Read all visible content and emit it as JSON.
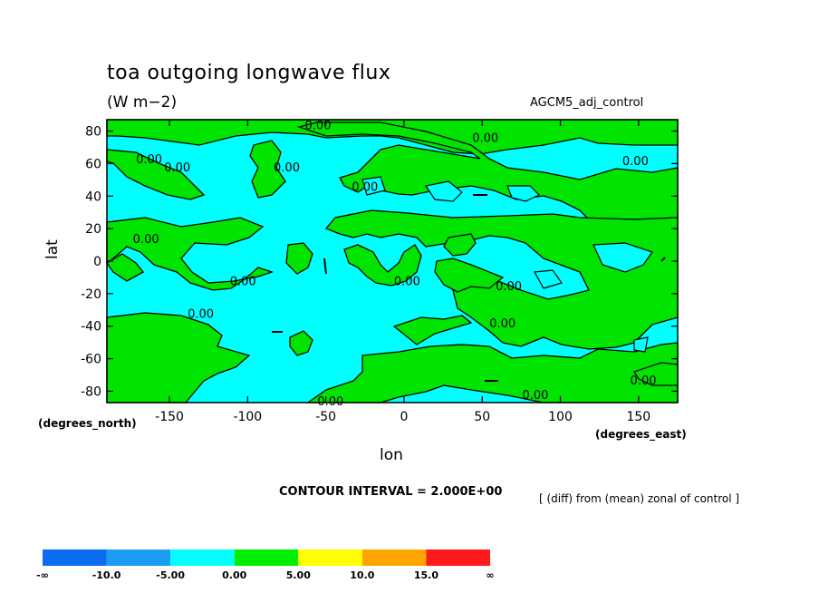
{
  "header": {
    "title": "toa outgoing longwave flux",
    "units": "(W m−2)",
    "dataset": "AGCM5_adj_control"
  },
  "axes": {
    "y_name": "lat",
    "x_name": "lon",
    "y_units": "(degrees_north)",
    "x_units": "(degrees_east)"
  },
  "footer": {
    "contour_interval": "CONTOUR INTERVAL = 2.000E+00",
    "operation": "[ (diff) from (mean) zonal of control ]"
  },
  "chart_data": {
    "type": "contour",
    "title": "toa outgoing longwave flux",
    "xlabel": "lon",
    "ylabel": "lat",
    "xlim": [
      -190,
      175
    ],
    "ylim": [
      -87,
      87
    ],
    "xticks": [
      -150,
      -100,
      -50,
      0,
      50,
      100,
      150
    ],
    "yticks": [
      80,
      60,
      40,
      20,
      0,
      -20,
      -40,
      -60,
      -80
    ],
    "contour_interval": 2.0,
    "contour_labels": [
      {
        "text": "0.00",
        "lon": -145,
        "lat": 58
      },
      {
        "text": "0.00",
        "lon": -163,
        "lat": 63
      },
      {
        "text": "0.00",
        "lon": -165,
        "lat": 14
      },
      {
        "text": "0.00",
        "lon": -103,
        "lat": -12
      },
      {
        "text": "0.00",
        "lon": -130,
        "lat": -32
      },
      {
        "text": "0.00",
        "lon": -75,
        "lat": 58
      },
      {
        "text": "0.00",
        "lon": -55,
        "lat": 84
      },
      {
        "text": "0.00",
        "lon": -25,
        "lat": 46
      },
      {
        "text": "0.00",
        "lon": 2,
        "lat": -12
      },
      {
        "text": "0.00",
        "lon": 52,
        "lat": 76
      },
      {
        "text": "0.00",
        "lon": 67,
        "lat": -15
      },
      {
        "text": "0.00",
        "lon": 63,
        "lat": -38
      },
      {
        "text": "0.00",
        "lon": 148,
        "lat": 62
      },
      {
        "text": "0.00",
        "lon": 153,
        "lat": -73
      },
      {
        "text": "0.00",
        "lon": 84,
        "lat": -82
      },
      {
        "text": "0.00",
        "lon": -47,
        "lat": -86
      }
    ],
    "colorbar": {
      "labels": [
        "-∞",
        "-10.0",
        "-5.00",
        "0.00",
        "5.00",
        "10.0",
        "15.0",
        "∞"
      ],
      "colors": [
        "#0a6cf0",
        "#1e9cf4",
        "#00ffff",
        "#00ee00",
        "#ffff00",
        "#ffa500",
        "#ff1a1a"
      ]
    },
    "fill_colors": {
      "negative": "#00ffff",
      "positive": "#00e400"
    }
  }
}
